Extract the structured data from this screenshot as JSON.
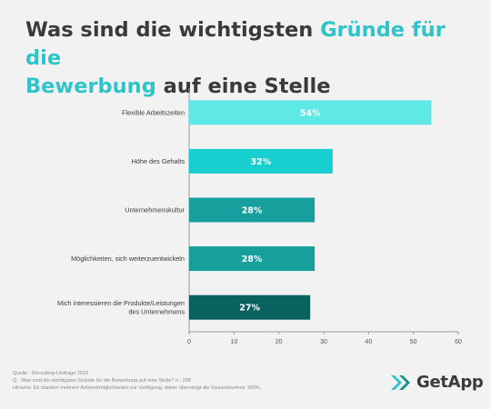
{
  "title": {
    "part1": "Was sind die wichtigsten ",
    "accent1": "Gründe für die",
    "accent2": "Bewerbung",
    "part2": " auf eine Stelle"
  },
  "colors": {
    "background": "#f2f2f2",
    "title_text": "#3a3a3a",
    "title_accent": "#2ec4c9"
  },
  "chart_data": {
    "type": "bar",
    "orientation": "horizontal",
    "categories": [
      "Flexible Arbeitszeiten",
      "Höhe des Gehalts",
      "Unternehmenskultur",
      "Möglichkeiten, sich weiterzuentwickeln",
      "Mich interessieren die Produkte/Leistungen des Unternehmens"
    ],
    "values": [
      54,
      32,
      28,
      28,
      27
    ],
    "value_labels": [
      "54%",
      "32%",
      "28%",
      "28%",
      "27%"
    ],
    "bar_colors": [
      "#5ee8e6",
      "#17cfcf",
      "#169f9c",
      "#169f9c",
      "#09625f"
    ],
    "xlim": [
      0,
      60
    ],
    "xticks": [
      0,
      10,
      20,
      30,
      40,
      50,
      60
    ],
    "grid": false,
    "legend": "none",
    "xlabel": "",
    "ylabel": ""
  },
  "footer": {
    "line1": "Quelle : Recruiting-Umfrage 2022",
    "line2": "Q : Was sind die wichtigsten Gründe für die Bewerbung auf eine Stelle? n : 208",
    "line3": "Hinweis: Es standen mehrere Antwortmöglichkeiten zur Verfügung, daher übersteigt die Gesamtsumme 100%."
  },
  "logo": {
    "icon": "getapp-chevron-icon",
    "text": "GetApp",
    "colors": [
      "#2ec4c9",
      "#1a8e8c"
    ]
  }
}
